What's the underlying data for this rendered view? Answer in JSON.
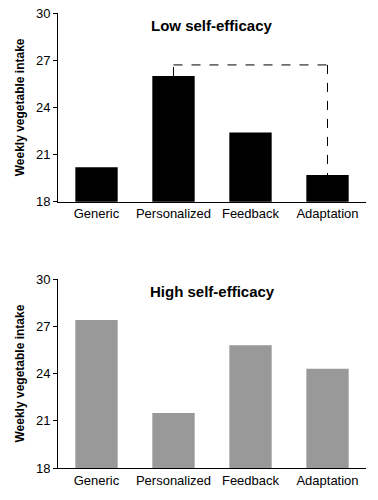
{
  "chart_data": [
    {
      "type": "bar",
      "title": "Low self-efficacy",
      "ylabel": "Weekly vegetable intake",
      "categories": [
        "Generic",
        "Personalized",
        "Feedback",
        "Adaptation"
      ],
      "values": [
        20.2,
        26.0,
        22.4,
        19.7
      ],
      "color": "#000000",
      "ylim": [
        18,
        30
      ],
      "yticks": [
        18,
        21,
        24,
        27,
        30
      ],
      "grid": false,
      "comparisons": [
        {
          "from": "Personalized",
          "to": "Adaptation",
          "y": 26.7
        }
      ]
    },
    {
      "type": "bar",
      "title": "High self-efficacy",
      "ylabel": "Weekly vegetable intake",
      "categories": [
        "Generic",
        "Personalized",
        "Feedback",
        "Adaptation"
      ],
      "values": [
        27.4,
        21.5,
        25.8,
        24.3
      ],
      "color": "#999999",
      "ylim": [
        18,
        30
      ],
      "yticks": [
        18,
        21,
        24,
        27,
        30
      ],
      "grid": false
    }
  ]
}
